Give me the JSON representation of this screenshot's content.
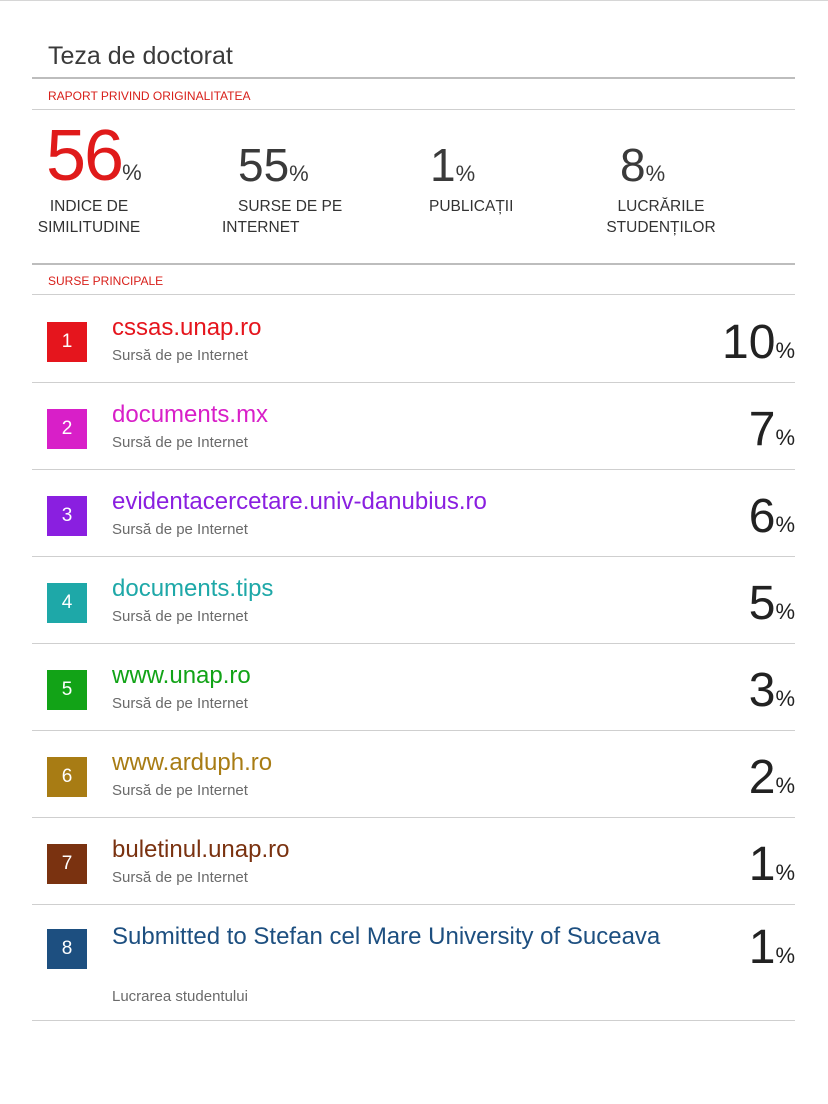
{
  "document": {
    "title": "Teza de doctorat",
    "report_label": "RAPORT PRIVIND ORIGINALITATEA",
    "sources_label": "SURSE PRINCIPALE",
    "percent_sign": "%"
  },
  "summary": [
    {
      "value": "56",
      "label_line1": "INDICE DE",
      "label_line2": "SIMILITUDINE"
    },
    {
      "value": "55",
      "label_line1": "SURSE DE PE",
      "label_line2": "INTERNET"
    },
    {
      "value": "1",
      "label_line1": "PUBLICAȚII",
      "label_line2": ""
    },
    {
      "value": "8",
      "label_line1": "LUCRĂRILE",
      "label_line2": "STUDENȚILOR"
    }
  ],
  "sources": [
    {
      "rank": "1",
      "name": "cssas.unap.ro",
      "type": "Sursă de pe Internet",
      "percent": "10",
      "color": "#e5151d"
    },
    {
      "rank": "2",
      "name": "documents.mx",
      "type": "Sursă de pe Internet",
      "percent": "7",
      "color": "#d81fc8"
    },
    {
      "rank": "3",
      "name": "evidentacercetare.univ-danubius.ro",
      "type": "Sursă de pe Internet",
      "percent": "6",
      "color": "#8a1fe0"
    },
    {
      "rank": "4",
      "name": "documents.tips",
      "type": "Sursă de pe Internet",
      "percent": "5",
      "color": "#1ea8a8"
    },
    {
      "rank": "5",
      "name": "www.unap.ro",
      "type": "Sursă de pe Internet",
      "percent": "3",
      "color": "#12a317"
    },
    {
      "rank": "6",
      "name": "www.arduph.ro",
      "type": "Sursă de pe Internet",
      "percent": "2",
      "color": "#a87c14"
    },
    {
      "rank": "7",
      "name": "buletinul.unap.ro",
      "type": "Sursă de pe Internet",
      "percent": "1",
      "color": "#7a3210"
    },
    {
      "rank": "8",
      "name": "Submitted to Stefan cel Mare University of Suceava",
      "type": "Lucrarea studentului",
      "percent": "1",
      "color": "#1d4f80"
    }
  ]
}
